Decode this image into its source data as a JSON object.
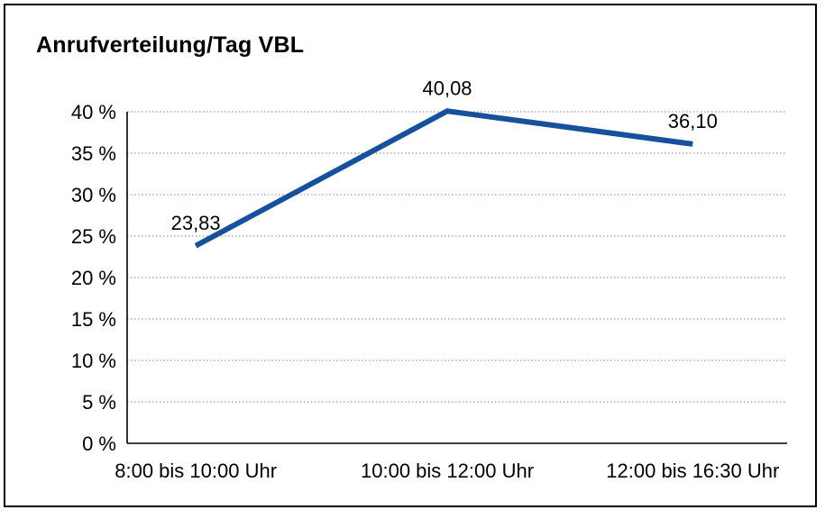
{
  "frame": {
    "background": "#ffffff",
    "border_color": "#000000"
  },
  "chart_data": {
    "type": "line",
    "title": "Anrufverteilung/Tag VBL",
    "categories": [
      "8:00 bis 10:00 Uhr",
      "10:00 bis 12:00 Uhr",
      "12:00 bis 16:30 Uhr"
    ],
    "values": [
      23.83,
      40.08,
      36.1
    ],
    "value_labels": [
      "23,83",
      "40,08",
      "36,10"
    ],
    "xlabel": "",
    "ylabel": "",
    "ylim": [
      0,
      40
    ],
    "y_ticks": [
      0,
      5,
      10,
      15,
      20,
      25,
      30,
      35,
      40
    ],
    "y_tick_labels": [
      "0 %",
      "5 %",
      "10 %",
      "15 %",
      "20 %",
      "25 %",
      "30 %",
      "35 %",
      "40 %"
    ],
    "grid": "horizontal-dotted",
    "legend_position": "none",
    "line_color": "#17519C",
    "axis_color": "#000000",
    "gridline_color": "#8a8a8a",
    "text_color": "#000000"
  }
}
